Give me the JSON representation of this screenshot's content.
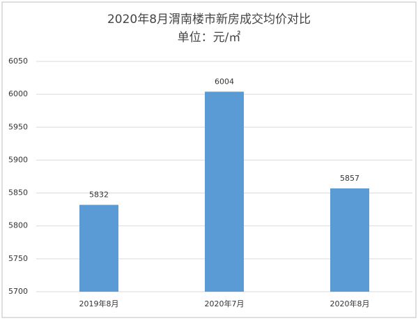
{
  "chart_data": {
    "type": "bar",
    "title": "2020年8月渭南楼市新房成交均价对比",
    "subtitle": "单位：元/㎡",
    "categories": [
      "2019年8月",
      "2020年7月",
      "2020年8月"
    ],
    "values": [
      5832,
      6004,
      5857
    ],
    "color": "#5b9bd5",
    "ylim": [
      5700,
      6050
    ],
    "yticks": [
      5700,
      5750,
      5800,
      5850,
      5900,
      5950,
      6000,
      6050
    ],
    "grid": true
  }
}
